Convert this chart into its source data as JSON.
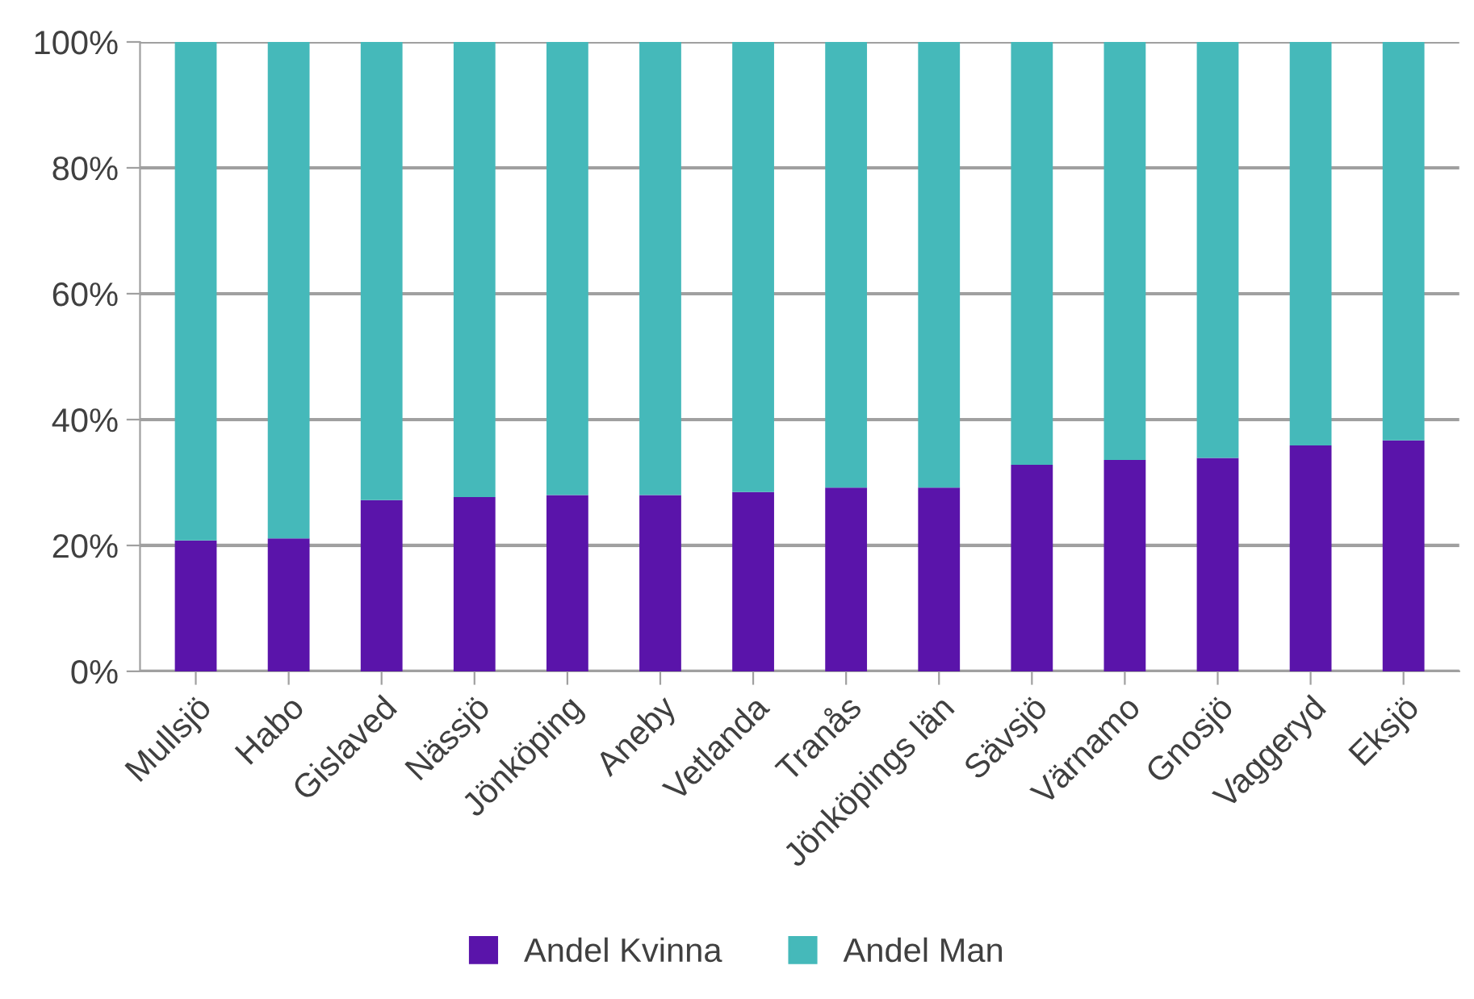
{
  "chart_data": {
    "type": "bar",
    "stacked": true,
    "categories": [
      "Mullsjö",
      "Habo",
      "Gislaved",
      "Nässjö",
      "Jönköping",
      "Aneby",
      "Vetlanda",
      "Tranås",
      "Jönköpings län",
      "Sävsjö",
      "Värnamo",
      "Gnosjö",
      "Vaggeryd",
      "Eksjö"
    ],
    "series": [
      {
        "name": "Andel Kvinna",
        "color": "#5a14aa",
        "values": [
          20.8,
          21.1,
          27.2,
          27.7,
          28.0,
          28.0,
          28.5,
          29.2,
          29.2,
          32.8,
          33.6,
          33.9,
          35.9,
          36.7
        ]
      },
      {
        "name": "Andel Man",
        "color": "#45b9ba",
        "values": [
          79.2,
          78.9,
          72.8,
          72.3,
          72.0,
          72.0,
          71.5,
          70.8,
          70.8,
          67.2,
          66.4,
          66.1,
          64.1,
          63.3
        ]
      }
    ],
    "ylim": [
      0,
      100
    ],
    "yticks": [
      {
        "value": 0,
        "label": "0%"
      },
      {
        "value": 20,
        "label": "20%"
      },
      {
        "value": 40,
        "label": "40%"
      },
      {
        "value": 60,
        "label": "60%"
      },
      {
        "value": 80,
        "label": "80%"
      },
      {
        "value": 100,
        "label": "100%"
      }
    ],
    "grid": "y",
    "legend": "bottom"
  }
}
